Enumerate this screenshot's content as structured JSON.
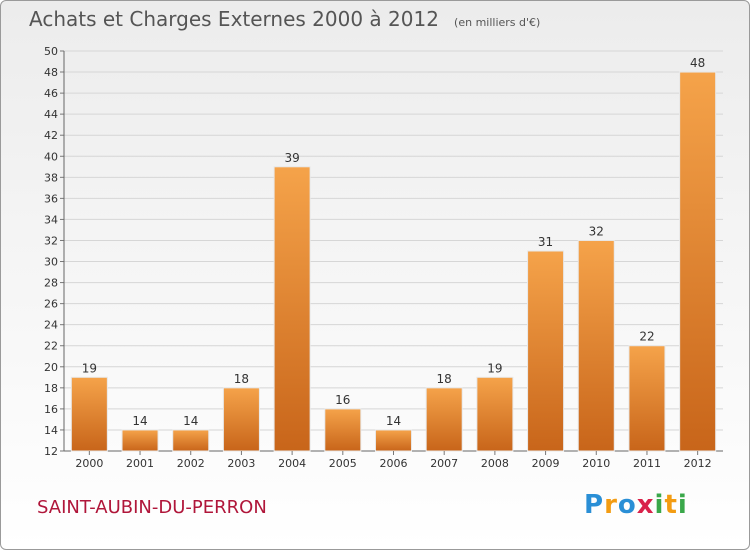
{
  "title": "Achats et Charges Externes 2000 à 2012",
  "unit": "(en milliers d'€)",
  "commune": "SAINT-AUBIN-DU-PERRON",
  "logo": {
    "letters": [
      "P",
      "r",
      "o",
      "x",
      "i",
      "t",
      "i"
    ],
    "colors": [
      "#2a8fd6",
      "#f39c12",
      "#2a8fd6",
      "#d9224a",
      "#3aa84a",
      "#f39c12",
      "#3aa84a"
    ]
  },
  "colors": {
    "bar_light": "#f5a34a",
    "bar_dark": "#c8651a",
    "bar_stroke": "#e8e8e8",
    "text": "#333333"
  },
  "chart_data": {
    "type": "bar",
    "categories": [
      "2000",
      "2001",
      "2002",
      "2003",
      "2004",
      "2005",
      "2006",
      "2007",
      "2008",
      "2009",
      "2010",
      "2011",
      "2012"
    ],
    "values": [
      19,
      14,
      14,
      18,
      39,
      16,
      14,
      18,
      19,
      31,
      32,
      22,
      48
    ],
    "ylim": [
      12,
      50
    ],
    "yticks": [
      12,
      14,
      16,
      18,
      20,
      22,
      24,
      26,
      28,
      30,
      32,
      34,
      36,
      38,
      40,
      42,
      44,
      46,
      48,
      50
    ],
    "grid": true
  }
}
